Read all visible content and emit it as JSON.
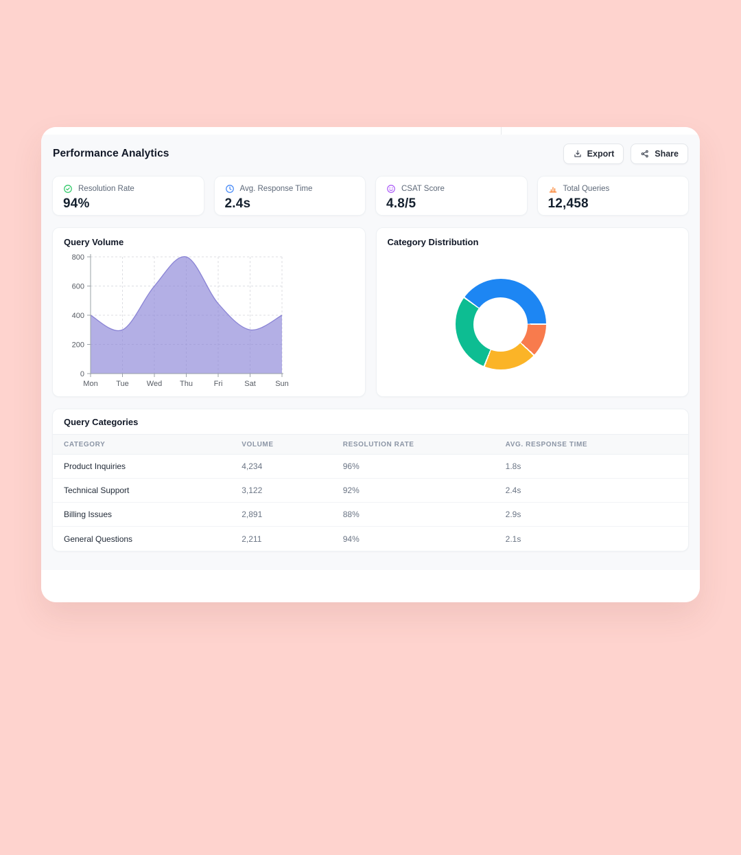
{
  "page": {
    "background": "#fed3ce"
  },
  "header": {
    "title": "Performance Analytics",
    "export_label": "Export",
    "share_label": "Share"
  },
  "stats": [
    {
      "icon": "check-circle-icon",
      "label": "Resolution Rate",
      "value": "94%",
      "color": "#22c55e"
    },
    {
      "icon": "clock-icon",
      "label": "Avg. Response Time",
      "value": "2.4s",
      "color": "#3b82f6"
    },
    {
      "icon": "smiley-icon",
      "label": "CSAT Score",
      "value": "4.8/5",
      "color": "#a855f7"
    },
    {
      "icon": "bar-chart-icon",
      "label": "Total Queries",
      "value": "12,458",
      "color": "#f97316"
    }
  ],
  "chart_data": [
    {
      "type": "area",
      "title": "Query Volume",
      "x": [
        "Mon",
        "Tue",
        "Wed",
        "Thu",
        "Fri",
        "Sat",
        "Sun"
      ],
      "values": [
        400,
        300,
        600,
        800,
        480,
        300,
        400
      ],
      "xlabel": "",
      "ylabel": "",
      "ylim": [
        0,
        800
      ],
      "yticks": [
        0,
        200,
        400,
        600,
        800
      ],
      "grid": true,
      "legend": false,
      "fill_color": "#8b85d8",
      "fill_opacity": 0.66,
      "line_color": "#7c75d0"
    },
    {
      "type": "donut",
      "title": "Category Distribution",
      "segments": [
        {
          "name": "segment-blue",
          "percent": 40,
          "color": "#1d86f3"
        },
        {
          "name": "segment-orange",
          "percent": 12,
          "color": "#f87b4d"
        },
        {
          "name": "segment-amber",
          "percent": 19,
          "color": "#fbb427"
        },
        {
          "name": "segment-green",
          "percent": 29,
          "color": "#0dbd92"
        }
      ],
      "rotation_deg": 305,
      "legend": false
    }
  ],
  "table": {
    "title": "Query Categories",
    "columns": [
      "Category",
      "Volume",
      "Resolution Rate",
      "Avg. Response Time"
    ],
    "rows": [
      [
        "Product Inquiries",
        "4,234",
        "96%",
        "1.8s"
      ],
      [
        "Technical Support",
        "3,122",
        "92%",
        "2.4s"
      ],
      [
        "Billing Issues",
        "2,891",
        "88%",
        "2.9s"
      ],
      [
        "General Questions",
        "2,211",
        "94%",
        "2.1s"
      ]
    ]
  }
}
